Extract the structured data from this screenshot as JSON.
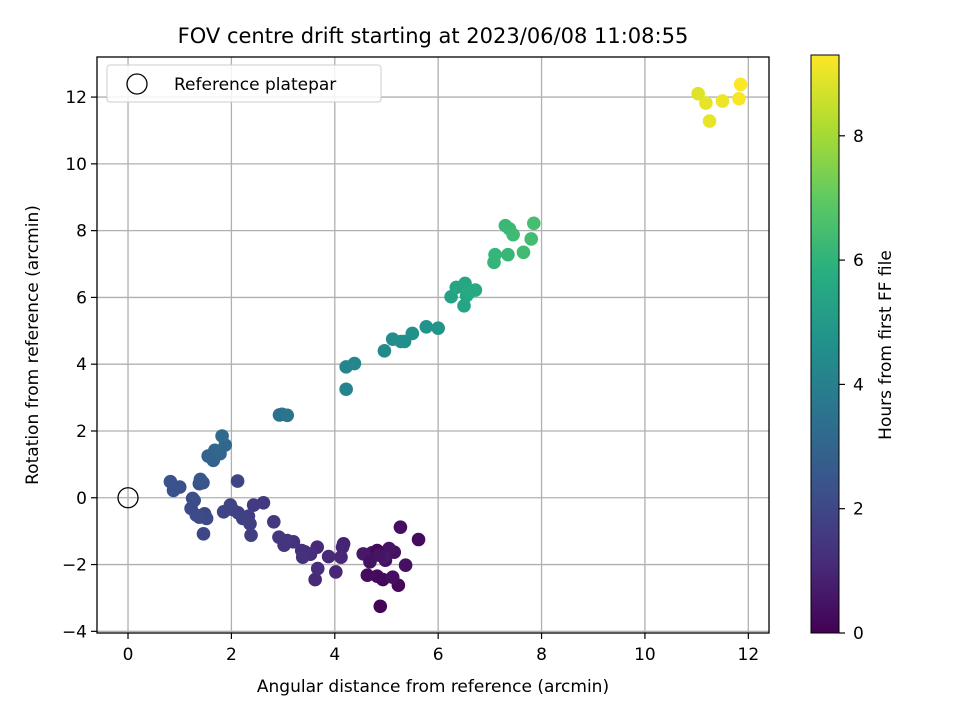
{
  "chart_data": {
    "type": "scatter",
    "title": "FOV centre drift starting at 2023/06/08 11:08:55",
    "xlabel": "Angular distance from reference (arcmin)",
    "ylabel": "Rotation from reference (arcmin)",
    "xlim": [
      -0.6,
      12.4
    ],
    "ylim": [
      -4.05,
      13.2
    ],
    "xticks": [
      0,
      2,
      4,
      6,
      8,
      10,
      12
    ],
    "yticks": [
      -4,
      -2,
      0,
      2,
      4,
      6,
      8,
      10,
      12
    ],
    "grid": true,
    "legend": {
      "position": "top-left",
      "entries": [
        "Reference platepar"
      ]
    },
    "reference_point": {
      "x": 0,
      "y": 0
    },
    "colorbar": {
      "label": "Hours from first FF file",
      "range": [
        0,
        9.3
      ],
      "ticks": [
        0,
        2,
        4,
        6,
        8
      ],
      "colormap": "viridis"
    },
    "points": [
      [
        4.88,
        -3.25,
        0.1
      ],
      [
        5.23,
        -2.62,
        0.15
      ],
      [
        4.93,
        -2.45,
        0.2
      ],
      [
        4.82,
        -2.35,
        0.25
      ],
      [
        4.63,
        -2.32,
        0.3
      ],
      [
        5.12,
        -2.38,
        0.35
      ],
      [
        4.98,
        -1.87,
        0.4
      ],
      [
        5.15,
        -1.63,
        0.45
      ],
      [
        5.05,
        -1.52,
        0.5
      ],
      [
        4.72,
        -1.65,
        0.55
      ],
      [
        4.55,
        -1.68,
        0.6
      ],
      [
        4.95,
        -1.78,
        0.65
      ],
      [
        5.27,
        -0.88,
        0.35
      ],
      [
        5.62,
        -1.25,
        0.3
      ],
      [
        5.37,
        -2.02,
        0.4
      ],
      [
        4.82,
        -1.58,
        0.2
      ],
      [
        4.86,
        -1.72,
        0.5
      ],
      [
        4.68,
        -1.92,
        0.45
      ],
      [
        4.17,
        -1.38,
        0.9
      ],
      [
        4.15,
        -1.48,
        0.95
      ],
      [
        4.12,
        -1.78,
        1.0
      ],
      [
        4.02,
        -2.22,
        1.0
      ],
      [
        3.88,
        -1.76,
        1.05
      ],
      [
        3.66,
        -1.48,
        1.1
      ],
      [
        3.62,
        -2.45,
        1.1
      ],
      [
        3.67,
        -2.12,
        1.15
      ],
      [
        3.53,
        -1.69,
        1.2
      ],
      [
        3.42,
        -1.62,
        1.25
      ],
      [
        3.36,
        -1.58,
        1.25
      ],
      [
        3.38,
        -1.78,
        1.3
      ],
      [
        3.2,
        -1.32,
        1.35
      ],
      [
        3.02,
        -1.42,
        1.4
      ],
      [
        3.08,
        -1.28,
        1.4
      ],
      [
        2.92,
        -1.18,
        1.45
      ],
      [
        2.82,
        -0.72,
        1.5
      ],
      [
        2.62,
        -0.15,
        1.55
      ],
      [
        2.43,
        -0.22,
        1.6
      ],
      [
        2.33,
        -0.55,
        1.65
      ],
      [
        2.36,
        -0.78,
        1.7
      ],
      [
        2.38,
        -1.12,
        1.7
      ],
      [
        2.22,
        -0.62,
        1.75
      ],
      [
        2.13,
        -0.45,
        1.8
      ],
      [
        2.02,
        -0.35,
        1.8
      ],
      [
        1.98,
        -0.22,
        1.85
      ],
      [
        1.85,
        -0.42,
        1.9
      ],
      [
        2.12,
        0.5,
        1.9
      ],
      [
        1.46,
        -1.08,
        1.95
      ],
      [
        1.48,
        -0.48,
        2.0
      ],
      [
        1.52,
        -0.62,
        2.05
      ],
      [
        1.38,
        -0.58,
        2.05
      ],
      [
        1.32,
        -0.52,
        2.1
      ],
      [
        1.22,
        -0.32,
        2.1
      ],
      [
        1.28,
        -0.08,
        2.15
      ],
      [
        1.25,
        -0.02,
        2.2
      ],
      [
        0.88,
        0.22,
        2.3
      ],
      [
        1.0,
        0.32,
        2.3
      ],
      [
        0.82,
        0.48,
        2.35
      ],
      [
        1.38,
        0.42,
        2.4
      ],
      [
        1.45,
        0.45,
        2.45
      ],
      [
        1.4,
        0.55,
        2.5
      ],
      [
        1.55,
        1.25,
        2.9
      ],
      [
        1.65,
        1.12,
        2.95
      ],
      [
        1.68,
        1.42,
        3.0
      ],
      [
        1.78,
        1.32,
        3.05
      ],
      [
        1.88,
        1.58,
        3.1
      ],
      [
        1.82,
        1.85,
        3.2
      ],
      [
        2.93,
        2.48,
        3.45
      ],
      [
        2.98,
        2.5,
        3.5
      ],
      [
        3.08,
        2.47,
        3.55
      ],
      [
        4.22,
        3.25,
        4.1
      ],
      [
        4.22,
        3.92,
        4.2
      ],
      [
        4.38,
        4.02,
        4.25
      ],
      [
        4.96,
        4.4,
        4.4
      ],
      [
        5.12,
        4.75,
        4.5
      ],
      [
        5.28,
        4.68,
        4.55
      ],
      [
        5.35,
        4.68,
        4.6
      ],
      [
        5.5,
        4.92,
        4.65
      ],
      [
        5.77,
        5.12,
        4.75
      ],
      [
        6.0,
        5.08,
        4.8
      ],
      [
        6.25,
        6.02,
        5.3
      ],
      [
        6.35,
        6.3,
        5.4
      ],
      [
        6.5,
        5.75,
        5.45
      ],
      [
        6.52,
        6.42,
        5.5
      ],
      [
        6.55,
        6.05,
        5.55
      ],
      [
        6.6,
        6.15,
        5.6
      ],
      [
        6.72,
        6.22,
        5.65
      ],
      [
        7.08,
        7.05,
        6.05
      ],
      [
        7.1,
        7.28,
        6.1
      ],
      [
        7.35,
        7.28,
        6.15
      ],
      [
        7.3,
        8.15,
        6.2
      ],
      [
        7.38,
        8.05,
        6.25
      ],
      [
        7.45,
        7.88,
        6.3
      ],
      [
        7.65,
        7.35,
        6.35
      ],
      [
        7.8,
        7.75,
        6.4
      ],
      [
        7.85,
        8.22,
        6.45
      ],
      [
        11.03,
        12.1,
        8.85
      ],
      [
        11.18,
        11.82,
        8.95
      ],
      [
        11.25,
        11.28,
        9.0
      ],
      [
        11.5,
        11.88,
        9.1
      ],
      [
        11.82,
        11.95,
        9.2
      ],
      [
        11.85,
        12.38,
        9.25
      ]
    ]
  }
}
